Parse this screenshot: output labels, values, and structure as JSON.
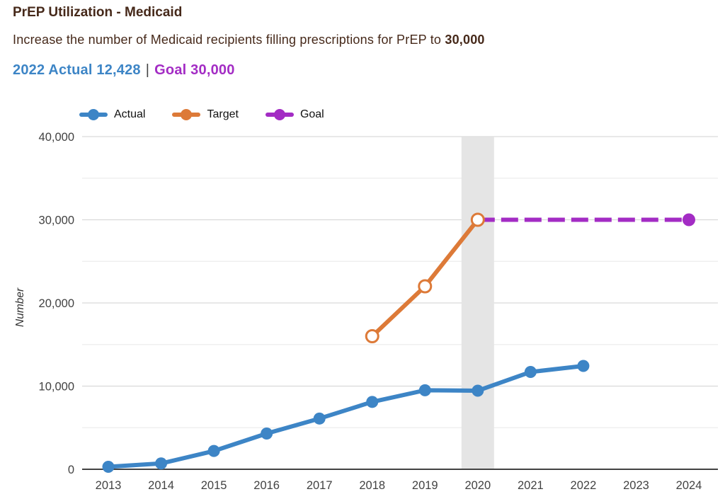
{
  "header": {
    "title": "PrEP Utilization - Medicaid",
    "subtitle_prefix": "Increase the number of Medicaid recipients filling prescriptions for PrEP to ",
    "subtitle_goal": "30,000",
    "stat_actual": "2022 Actual 12,428",
    "stat_separator": "|",
    "stat_goal": "Goal 30,000"
  },
  "colors": {
    "title_text": "#46291a",
    "actual": "#3d85c6",
    "target": "#dd7a38",
    "goal": "#a32cc4",
    "stat_separator": "#424242",
    "axis_line": "#424242",
    "tick_text": "#424242",
    "grid_major": "#d9d9d9",
    "grid_minor": "#ededed",
    "highlight_band": "#e5e5e5"
  },
  "legend": [
    {
      "label": "Actual",
      "color": "#3d85c6"
    },
    {
      "label": "Target",
      "color": "#dd7a38"
    },
    {
      "label": "Goal",
      "color": "#a32cc4"
    }
  ],
  "chart_data": {
    "type": "line",
    "title": "PrEP Utilization - Medicaid",
    "xlabel": "",
    "ylabel": "Number",
    "ylim": [
      0,
      40000
    ],
    "grid": "on",
    "legend_position": "top",
    "x_ticks": [
      "2013",
      "2014",
      "2015",
      "2016",
      "2017",
      "2018",
      "2019",
      "2020",
      "2021",
      "2022",
      "2023",
      "2024"
    ],
    "y_ticks": [
      {
        "value": 0,
        "label": "0"
      },
      {
        "value": 10000,
        "label": "10,000"
      },
      {
        "value": 20000,
        "label": "20,000"
      },
      {
        "value": 30000,
        "label": "30,000"
      },
      {
        "value": 40000,
        "label": "40,000"
      }
    ],
    "y_minor_ticks": [
      5000,
      15000,
      25000,
      35000
    ],
    "highlight_band_year": 2020,
    "series": [
      {
        "name": "Actual",
        "color": "#3d85c6",
        "line_style": "solid",
        "marker": "filled-circle",
        "points": [
          [
            2013,
            300
          ],
          [
            2014,
            700
          ],
          [
            2015,
            2200
          ],
          [
            2016,
            4300
          ],
          [
            2017,
            6100
          ],
          [
            2018,
            8100
          ],
          [
            2019,
            9500
          ],
          [
            2020,
            9450
          ],
          [
            2021,
            11700
          ],
          [
            2022,
            12428
          ]
        ]
      },
      {
        "name": "Target",
        "color": "#dd7a38",
        "line_style": "solid",
        "marker": "open-circle",
        "points": [
          [
            2018,
            16000
          ],
          [
            2019,
            22000
          ],
          [
            2020,
            30000
          ]
        ]
      },
      {
        "name": "Goal",
        "color": "#a32cc4",
        "line_style": "dashed",
        "marker": "filled-circle-end",
        "points": [
          [
            2020,
            30000
          ],
          [
            2024,
            30000
          ]
        ]
      }
    ]
  }
}
